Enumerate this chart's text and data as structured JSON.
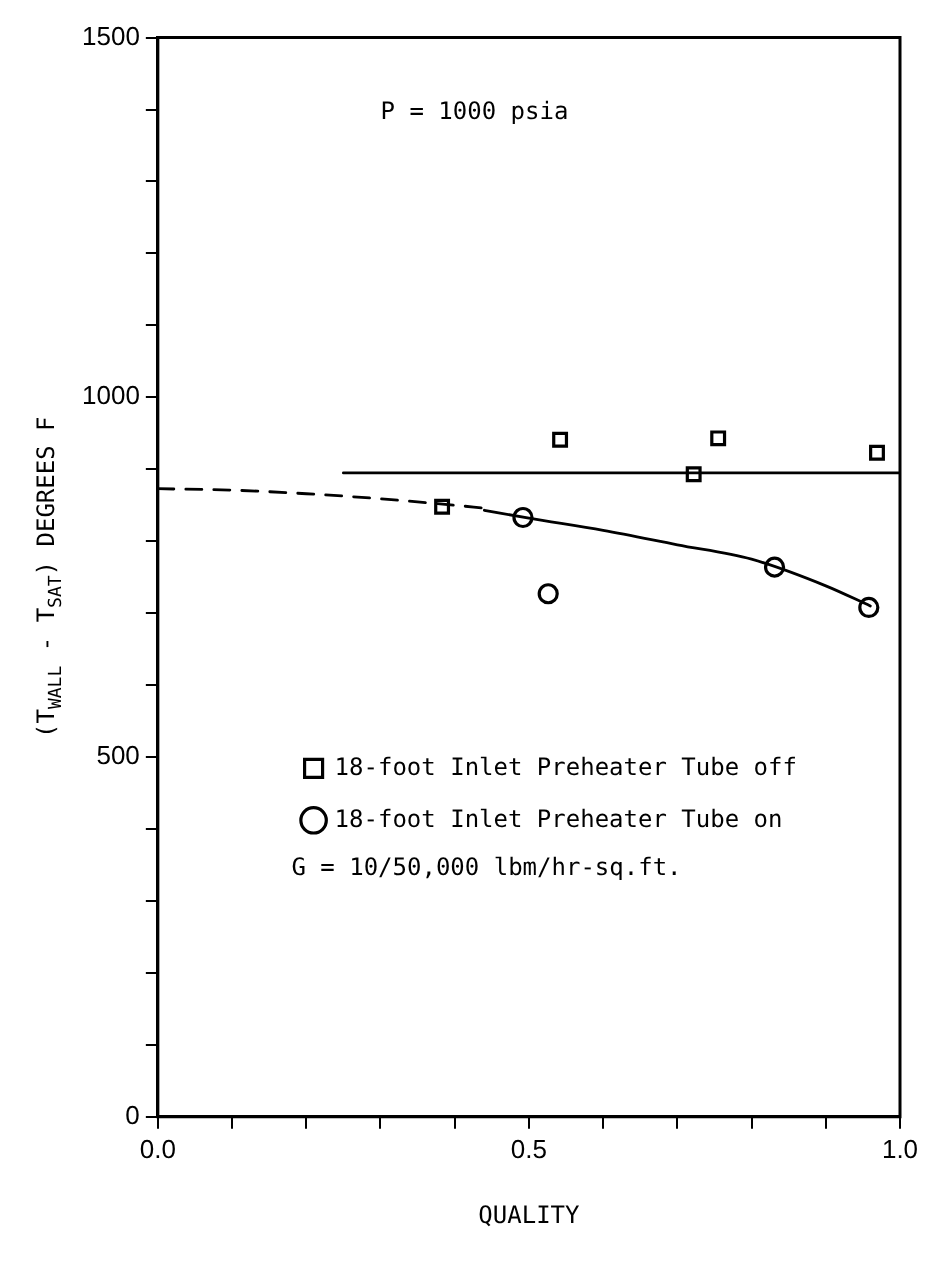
{
  "chart_data": {
    "type": "scatter",
    "xlabel": "QUALITY",
    "ylabel": "(T$_{WALL}$ - T$_{SAT}$) DEGREES F",
    "annotations": [
      "P = 1000 psia",
      "G = 10/50,000 lbm/hr-sq.ft."
    ],
    "xlim": [
      0,
      1
    ],
    "xticks": [
      {
        "value": 0,
        "label": "0.0"
      },
      {
        "value": 0.1,
        "label": null
      },
      {
        "value": 0.2,
        "label": null
      },
      {
        "value": 0.3,
        "label": null
      },
      {
        "value": 0.4,
        "label": null
      },
      {
        "value": 0.5,
        "label": "0.5"
      },
      {
        "value": 0.6,
        "label": null
      },
      {
        "value": 0.7,
        "label": null
      },
      {
        "value": 0.8,
        "label": null
      },
      {
        "value": 0.9,
        "label": null
      },
      {
        "value": 1,
        "label": "1.0"
      }
    ],
    "ylim": [
      0,
      1500
    ],
    "yticks": [
      0,
      {
        "value": 100,
        "label": null
      },
      {
        "value": 200,
        "label": null
      },
      {
        "value": 300,
        "label": null
      },
      {
        "value": 400,
        "label": null
      },
      500,
      {
        "value": 600,
        "label": null
      },
      {
        "value": 700,
        "label": null
      },
      {
        "value": 800,
        "label": null
      },
      {
        "value": 900,
        "label": null
      },
      1000,
      {
        "value": 1100,
        "label": null
      },
      {
        "value": 1200,
        "label": null
      },
      {
        "value": 1300,
        "label": null
      },
      {
        "value": 1400,
        "label": null
      },
      1500
    ],
    "grid": false,
    "legend": "bottom right",
    "series": [
      {
        "name": "18-foot Inlet Preheater Tube off",
        "type": "scatter",
        "marker": "square",
        "color": "#000000",
        "x": [
          0.383,
          0.542,
          0.722,
          0.755,
          0.969
        ],
        "values": [
          848,
          941,
          893,
          943,
          923
        ]
      },
      {
        "name": "18-foot Inlet Preheater Tube on",
        "type": "scatter",
        "marker": "circle",
        "color": "#000000",
        "x": [
          0.492,
          0.526,
          0.831,
          0.958
        ],
        "values": [
          833,
          727,
          764,
          708
        ]
      },
      {
        "type": "line",
        "marker": "none",
        "line_style": "solid",
        "color": "#000000",
        "x": [
          0.25,
          1.0
        ],
        "values": [
          895,
          895
        ]
      },
      {
        "type": "line",
        "marker": "none",
        "line_style": "dashed",
        "color": "#000000",
        "x": [
          0,
          0.1,
          0.2,
          0.3,
          0.4,
          0.44
        ],
        "values": [
          873,
          871,
          866,
          859,
          850,
          846
        ]
      },
      {
        "type": "line",
        "marker": "none",
        "line_style": "solid",
        "color": "#000000",
        "x": [
          0.44,
          0.5,
          0.6,
          0.7,
          0.8,
          0.9,
          0.96
        ],
        "values": [
          843,
          832,
          815,
          795,
          775,
          738,
          710
        ]
      }
    ]
  }
}
